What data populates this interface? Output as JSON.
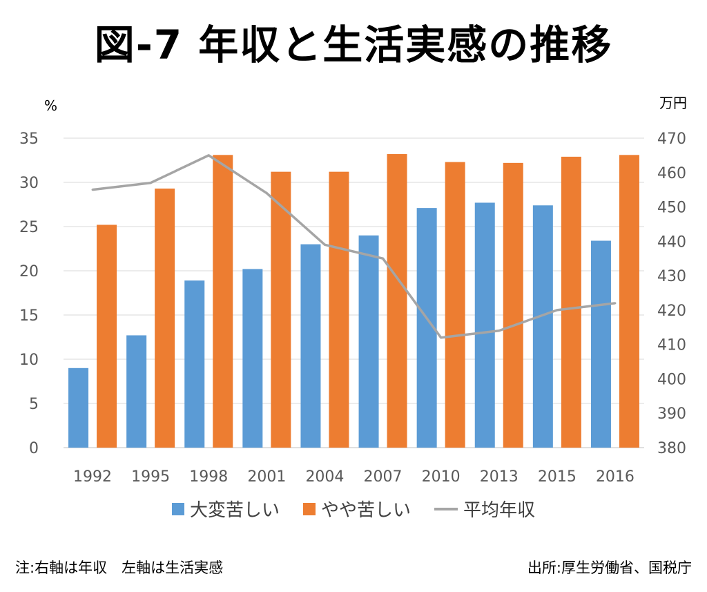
{
  "title": "図-7 年収と生活実感の推移",
  "left_axis_unit": "%",
  "right_axis_unit": "万円",
  "note": "注:右軸は年収　左軸は生活実感",
  "source": "出所:厚生労働省、国税庁",
  "colors": {
    "series1": "#5b9bd5",
    "series2": "#ed7d31",
    "series3": "#a5a5a5"
  },
  "chart_data": {
    "type": "bar",
    "categories": [
      "1992",
      "1995",
      "1998",
      "2001",
      "2004",
      "2007",
      "2010",
      "2013",
      "2015",
      "2016"
    ],
    "series": [
      {
        "name": "大変苦しい",
        "axis": "left",
        "values": [
          9.0,
          12.7,
          18.9,
          20.2,
          23.0,
          24.0,
          27.1,
          27.7,
          27.4,
          23.4
        ]
      },
      {
        "name": "やや苦しい",
        "axis": "left",
        "values": [
          25.2,
          29.3,
          33.1,
          31.2,
          31.2,
          33.2,
          32.3,
          32.2,
          32.9,
          33.1
        ]
      },
      {
        "name": "平均年収",
        "axis": "right",
        "type": "line",
        "values": [
          455,
          457,
          465,
          454,
          439,
          435,
          412,
          414,
          420,
          422
        ]
      }
    ],
    "left_ylim": [
      0,
      35
    ],
    "left_yticks": [
      0,
      5,
      10,
      15,
      20,
      25,
      30,
      35
    ],
    "right_ylim": [
      380,
      470
    ],
    "right_yticks": [
      380,
      390,
      400,
      410,
      420,
      430,
      440,
      450,
      460,
      470
    ],
    "grid": true,
    "legend_position": "bottom"
  }
}
